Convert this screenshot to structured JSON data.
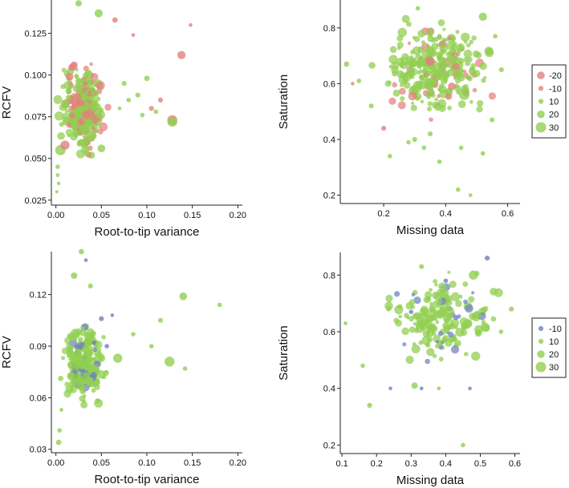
{
  "chart_data": [
    {
      "type": "scatter",
      "xlabel": "Root-to-tip variance",
      "ylabel": "RCFV",
      "xlim": [
        -0.005,
        0.205
      ],
      "ylim": [
        0.022,
        0.145
      ],
      "xticks": [
        0.0,
        0.05,
        0.1,
        0.15,
        0.2
      ],
      "xtick_labels": [
        "0.00",
        "0.05",
        "0.10",
        "0.15",
        "0.20"
      ],
      "yticks": [
        0.025,
        0.05,
        0.075,
        0.1,
        0.125
      ],
      "ytick_labels": [
        "0.025",
        "0.050",
        "0.075",
        "0.100",
        "0.125"
      ],
      "legend_ref": 0,
      "cluster": {
        "x_range": [
          0.0,
          0.06
        ],
        "y_range": [
          0.045,
          0.115
        ],
        "count": 300,
        "neg_share": 0.28
      },
      "points": [
        {
          "x": 0.025,
          "y": 0.143,
          "s": 15,
          "c": "pos"
        },
        {
          "x": 0.047,
          "y": 0.137,
          "s": 22,
          "c": "pos"
        },
        {
          "x": 0.065,
          "y": 0.133,
          "s": -12,
          "c": "neg"
        },
        {
          "x": 0.085,
          "y": 0.124,
          "s": -5,
          "c": "neg"
        },
        {
          "x": 0.148,
          "y": 0.13,
          "s": -5,
          "c": "neg"
        },
        {
          "x": 0.138,
          "y": 0.112,
          "s": -22,
          "c": "neg"
        },
        {
          "x": 0.128,
          "y": 0.073,
          "s": -28,
          "c": "neg"
        },
        {
          "x": 0.128,
          "y": 0.072,
          "s": 28,
          "c": "pos"
        },
        {
          "x": 0.115,
          "y": 0.085,
          "s": -10,
          "c": "neg"
        },
        {
          "x": 0.105,
          "y": 0.08,
          "s": -10,
          "c": "neg"
        },
        {
          "x": 0.1,
          "y": 0.098,
          "s": 12,
          "c": "pos"
        },
        {
          "x": 0.09,
          "y": 0.088,
          "s": 10,
          "c": "pos"
        },
        {
          "x": 0.08,
          "y": 0.085,
          "s": 8,
          "c": "pos"
        },
        {
          "x": 0.075,
          "y": 0.095,
          "s": 10,
          "c": "pos"
        },
        {
          "x": 0.07,
          "y": 0.08,
          "s": 6,
          "c": "pos"
        },
        {
          "x": 0.095,
          "y": 0.076,
          "s": 8,
          "c": "pos"
        },
        {
          "x": 0.11,
          "y": 0.078,
          "s": 8,
          "c": "pos"
        },
        {
          "x": 0.005,
          "y": 0.055,
          "s": 30,
          "c": "pos"
        },
        {
          "x": 0.01,
          "y": 0.058,
          "s": -25,
          "c": "neg"
        },
        {
          "x": 0.015,
          "y": 0.099,
          "s": -20,
          "c": "neg"
        },
        {
          "x": 0.02,
          "y": 0.106,
          "s": -18,
          "c": "neg"
        },
        {
          "x": 0.05,
          "y": 0.056,
          "s": 20,
          "c": "pos"
        },
        {
          "x": 0.002,
          "y": 0.04,
          "s": 6,
          "c": "pos"
        },
        {
          "x": 0.003,
          "y": 0.035,
          "s": 5,
          "c": "pos"
        },
        {
          "x": 0.001,
          "y": 0.03,
          "s": 4,
          "c": "pos"
        },
        {
          "x": 0.002,
          "y": 0.045,
          "s": 8,
          "c": "pos"
        }
      ]
    },
    {
      "type": "scatter",
      "xlabel": "Missing data",
      "ylabel": "Saturation",
      "xlim": [
        0.06,
        0.64
      ],
      "ylim": [
        0.17,
        0.9
      ],
      "xticks": [
        0.2,
        0.4,
        0.6
      ],
      "xtick_labels": [
        "0.2",
        "0.4",
        "0.6"
      ],
      "yticks": [
        0.2,
        0.4,
        0.6,
        0.8
      ],
      "ytick_labels": [
        "0.2",
        "0.4",
        "0.6",
        "0.8"
      ],
      "legend_ref": 0,
      "cluster": {
        "x_range": [
          0.15,
          0.58
        ],
        "y_range": [
          0.45,
          0.85
        ],
        "count": 300,
        "neg_share": 0.18
      },
      "points": [
        {
          "x": 0.08,
          "y": 0.67,
          "s": 12,
          "c": "pos"
        },
        {
          "x": 0.12,
          "y": 0.61,
          "s": 8,
          "c": "pos"
        },
        {
          "x": 0.1,
          "y": 0.6,
          "s": -5,
          "c": "neg"
        },
        {
          "x": 0.2,
          "y": 0.44,
          "s": -10,
          "c": "neg"
        },
        {
          "x": 0.22,
          "y": 0.34,
          "s": 8,
          "c": "pos"
        },
        {
          "x": 0.28,
          "y": 0.39,
          "s": 8,
          "c": "pos"
        },
        {
          "x": 0.3,
          "y": 0.4,
          "s": 10,
          "c": "pos"
        },
        {
          "x": 0.33,
          "y": 0.37,
          "s": 8,
          "c": "pos"
        },
        {
          "x": 0.35,
          "y": 0.42,
          "s": 10,
          "c": "pos"
        },
        {
          "x": 0.44,
          "y": 0.22,
          "s": 8,
          "c": "pos"
        },
        {
          "x": 0.48,
          "y": 0.2,
          "s": 6,
          "c": "pos"
        },
        {
          "x": 0.52,
          "y": 0.35,
          "s": 8,
          "c": "pos"
        },
        {
          "x": 0.45,
          "y": 0.37,
          "s": 8,
          "c": "pos"
        },
        {
          "x": 0.46,
          "y": 0.56,
          "s": 30,
          "c": "pos"
        },
        {
          "x": 0.52,
          "y": 0.84,
          "s": 22,
          "c": "pos"
        },
        {
          "x": 0.35,
          "y": 0.68,
          "s": -25,
          "c": "neg"
        },
        {
          "x": 0.42,
          "y": 0.59,
          "s": -20,
          "c": "neg"
        },
        {
          "x": 0.31,
          "y": 0.87,
          "s": 8,
          "c": "pos"
        },
        {
          "x": 0.56,
          "y": 0.77,
          "s": 8,
          "c": "pos"
        },
        {
          "x": 0.58,
          "y": 0.65,
          "s": 10,
          "c": "pos"
        },
        {
          "x": 0.16,
          "y": 0.52,
          "s": 10,
          "c": "pos"
        },
        {
          "x": 0.55,
          "y": 0.47,
          "s": 10,
          "c": "pos"
        },
        {
          "x": 0.38,
          "y": 0.32,
          "s": 8,
          "c": "pos"
        }
      ]
    },
    {
      "type": "scatter",
      "xlabel": "Root-to-tip variance",
      "ylabel": "RCFV",
      "xlim": [
        -0.005,
        0.205
      ],
      "ylim": [
        0.028,
        0.145
      ],
      "xticks": [
        0.0,
        0.05,
        0.1,
        0.15,
        0.2
      ],
      "xtick_labels": [
        "0.00",
        "0.05",
        "0.10",
        "0.15",
        "0.20"
      ],
      "yticks": [
        0.03,
        0.06,
        0.09,
        0.12
      ],
      "ytick_labels": [
        "0.03",
        "0.06",
        "0.09",
        "0.12"
      ],
      "legend_ref": 1,
      "cluster": {
        "x_range": [
          0.0,
          0.06
        ],
        "y_range": [
          0.05,
          0.11
        ],
        "count": 220,
        "neg_share": 0.12
      },
      "points": [
        {
          "x": 0.028,
          "y": 0.145,
          "s": 12,
          "c": "pos"
        },
        {
          "x": 0.033,
          "y": 0.14,
          "s": -5,
          "c": "neg"
        },
        {
          "x": 0.02,
          "y": 0.131,
          "s": 15,
          "c": "pos"
        },
        {
          "x": 0.038,
          "y": 0.125,
          "s": 10,
          "c": "pos"
        },
        {
          "x": 0.068,
          "y": 0.083,
          "s": 25,
          "c": "pos"
        },
        {
          "x": 0.125,
          "y": 0.081,
          "s": 28,
          "c": "pos"
        },
        {
          "x": 0.14,
          "y": 0.119,
          "s": 20,
          "c": "pos"
        },
        {
          "x": 0.18,
          "y": 0.114,
          "s": 8,
          "c": "pos"
        },
        {
          "x": 0.115,
          "y": 0.105,
          "s": 10,
          "c": "pos"
        },
        {
          "x": 0.142,
          "y": 0.077,
          "s": 8,
          "c": "pos"
        },
        {
          "x": 0.085,
          "y": 0.097,
          "s": 8,
          "c": "pos"
        },
        {
          "x": 0.105,
          "y": 0.09,
          "s": 8,
          "c": "pos"
        },
        {
          "x": 0.05,
          "y": 0.106,
          "s": -10,
          "c": "neg"
        },
        {
          "x": 0.042,
          "y": 0.092,
          "s": -8,
          "c": "neg"
        },
        {
          "x": 0.056,
          "y": 0.09,
          "s": -8,
          "c": "neg"
        },
        {
          "x": 0.062,
          "y": 0.108,
          "s": -5,
          "c": "neg"
        },
        {
          "x": 0.003,
          "y": 0.034,
          "s": 12,
          "c": "pos"
        },
        {
          "x": 0.004,
          "y": 0.041,
          "s": 8,
          "c": "pos"
        },
        {
          "x": 0.006,
          "y": 0.053,
          "s": 6,
          "c": "pos"
        },
        {
          "x": 0.036,
          "y": 0.07,
          "s": 20,
          "c": "pos"
        },
        {
          "x": 0.05,
          "y": 0.083,
          "s": 20,
          "c": "pos"
        }
      ]
    },
    {
      "type": "scatter",
      "xlabel": "Missing data",
      "ylabel": "Saturation",
      "xlim": [
        0.095,
        0.615
      ],
      "ylim": [
        0.17,
        0.88
      ],
      "xticks": [
        0.1,
        0.2,
        0.3,
        0.4,
        0.5,
        0.6
      ],
      "xtick_labels": [
        "0.1",
        "0.2",
        "0.3",
        "0.4",
        "0.5",
        "0.6"
      ],
      "yticks": [
        0.2,
        0.4,
        0.6,
        0.8
      ],
      "ytick_labels": [
        "0.2",
        "0.4",
        "0.6",
        "0.8"
      ],
      "legend_ref": 1,
      "cluster": {
        "x_range": [
          0.19,
          0.58
        ],
        "y_range": [
          0.45,
          0.83
        ],
        "count": 180,
        "neg_share": 0.18
      },
      "points": [
        {
          "x": 0.11,
          "y": 0.63,
          "s": 6,
          "c": "pos"
        },
        {
          "x": 0.16,
          "y": 0.48,
          "s": 8,
          "c": "pos"
        },
        {
          "x": 0.18,
          "y": 0.34,
          "s": 10,
          "c": "pos"
        },
        {
          "x": 0.24,
          "y": 0.4,
          "s": -5,
          "c": "neg"
        },
        {
          "x": 0.31,
          "y": 0.41,
          "s": 15,
          "c": "pos"
        },
        {
          "x": 0.33,
          "y": 0.4,
          "s": -5,
          "c": "neg"
        },
        {
          "x": 0.38,
          "y": 0.4,
          "s": 6,
          "c": "pos"
        },
        {
          "x": 0.45,
          "y": 0.2,
          "s": 8,
          "c": "pos"
        },
        {
          "x": 0.47,
          "y": 0.4,
          "s": -5,
          "c": "neg"
        },
        {
          "x": 0.52,
          "y": 0.86,
          "s": -10,
          "c": "neg"
        },
        {
          "x": 0.48,
          "y": 0.8,
          "s": 25,
          "c": "pos"
        },
        {
          "x": 0.59,
          "y": 0.68,
          "s": 10,
          "c": "pos"
        },
        {
          "x": 0.4,
          "y": 0.78,
          "s": -8,
          "c": "neg"
        },
        {
          "x": 0.43,
          "y": 0.65,
          "s": -10,
          "c": "neg"
        },
        {
          "x": 0.3,
          "y": 0.67,
          "s": -8,
          "c": "neg"
        },
        {
          "x": 0.33,
          "y": 0.83,
          "s": 10,
          "c": "pos"
        },
        {
          "x": 0.56,
          "y": 0.6,
          "s": 8,
          "c": "pos"
        }
      ]
    }
  ],
  "legends": [
    {
      "entries": [
        {
          "label": "-20",
          "value": -20,
          "color": "#e47f7d"
        },
        {
          "label": "-10",
          "value": -10,
          "color": "#e47f7d"
        },
        {
          "label": "10",
          "value": 10,
          "color": "#91cf52"
        },
        {
          "label": "20",
          "value": 20,
          "color": "#91cf52"
        },
        {
          "label": "30",
          "value": 30,
          "color": "#91cf52"
        }
      ]
    },
    {
      "entries": [
        {
          "label": "-10",
          "value": -10,
          "color": "#6f7fc1"
        },
        {
          "label": "10",
          "value": 10,
          "color": "#91cf52"
        },
        {
          "label": "20",
          "value": 20,
          "color": "#91cf52"
        },
        {
          "label": "30",
          "value": 30,
          "color": "#91cf52"
        }
      ]
    }
  ],
  "colors": {
    "positive": "#91cf52",
    "negative_top": "#e47f7d",
    "negative_bottom": "#6f7fc1"
  }
}
